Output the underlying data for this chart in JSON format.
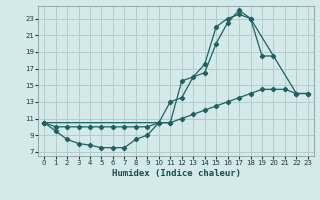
{
  "xlabel": "Humidex (Indice chaleur)",
  "bg_color": "#d4eaea",
  "grid_color": "#b2cccc",
  "line_color": "#206060",
  "xlim": [
    -0.5,
    23.5
  ],
  "ylim": [
    6.5,
    24.5
  ],
  "xticks": [
    0,
    1,
    2,
    3,
    4,
    5,
    6,
    7,
    8,
    9,
    10,
    11,
    12,
    13,
    14,
    15,
    16,
    17,
    18,
    19,
    20,
    21,
    22,
    23
  ],
  "yticks": [
    7,
    9,
    11,
    13,
    15,
    17,
    19,
    21,
    23
  ],
  "line1_x": [
    0,
    1,
    2,
    3,
    4,
    5,
    6,
    7,
    8,
    9,
    10,
    11,
    12,
    13,
    14,
    15,
    16,
    17,
    18,
    19,
    20,
    21,
    22,
    23
  ],
  "line1_y": [
    10.5,
    10.0,
    10.0,
    10.0,
    10.0,
    10.0,
    10.0,
    10.0,
    10.0,
    10.0,
    10.5,
    10.5,
    11.0,
    11.5,
    12.0,
    12.5,
    13.0,
    13.5,
    14.0,
    14.5,
    14.5,
    14.5,
    14.0,
    14.0
  ],
  "line2_x": [
    0,
    1,
    2,
    3,
    4,
    5,
    6,
    7,
    8,
    9,
    10,
    11,
    12,
    13,
    14,
    15,
    16,
    17,
    18,
    19,
    20
  ],
  "line2_y": [
    10.5,
    9.5,
    8.5,
    8.0,
    7.8,
    7.5,
    7.5,
    7.5,
    8.5,
    9.0,
    10.5,
    13.0,
    13.5,
    16.0,
    17.5,
    22.0,
    23.0,
    23.5,
    23.0,
    18.5,
    18.5
  ],
  "line3_x": [
    0,
    10,
    11,
    12,
    14,
    15,
    16,
    17,
    18,
    22,
    23
  ],
  "line3_y": [
    10.5,
    10.5,
    10.5,
    15.5,
    16.5,
    20.0,
    22.5,
    24.0,
    23.0,
    14.0,
    14.0
  ]
}
